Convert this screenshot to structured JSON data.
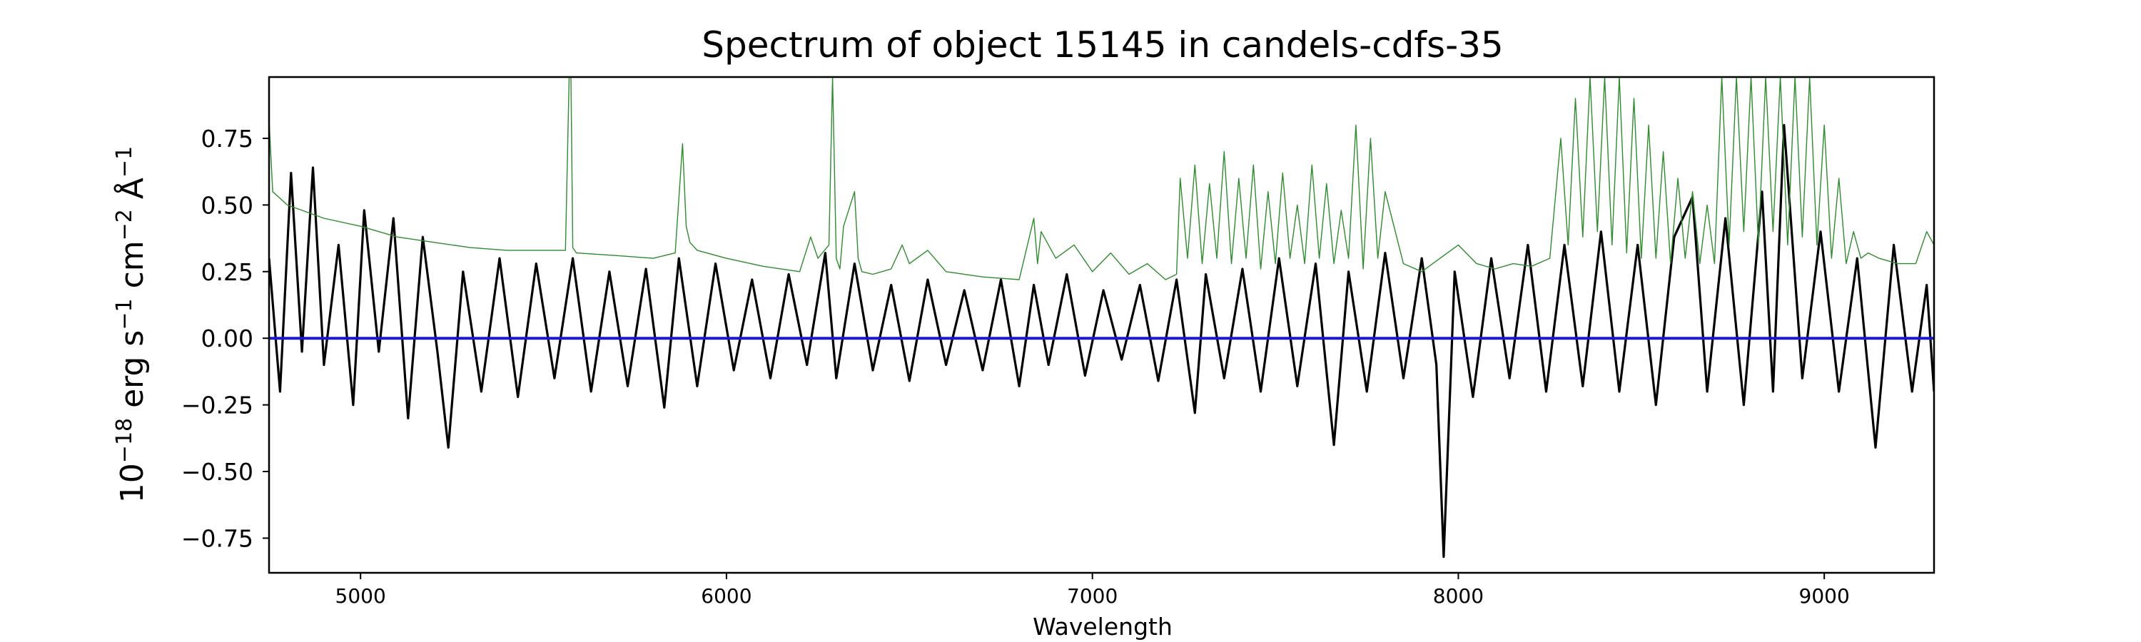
{
  "chart_data": {
    "type": "line",
    "title": "Spectrum of object 15145 in candels-cdfs-35",
    "xlabel": "Wavelength",
    "ylabel_parts": {
      "base": "10",
      "exp": "−18",
      "unit1": " erg s",
      "exp1": "−1",
      "unit2": " cm",
      "exp2": "−2",
      "unit3": " Å",
      "exp3": "−1"
    },
    "xlim": [
      4750,
      9300
    ],
    "ylim": [
      -0.88,
      0.98
    ],
    "xticks": [
      5000,
      6000,
      7000,
      8000,
      9000
    ],
    "xtick_labels": [
      "5000",
      "6000",
      "7000",
      "8000",
      "9000"
    ],
    "yticks": [
      0.75,
      0.5,
      0.25,
      0.0,
      -0.25,
      -0.5,
      -0.75
    ],
    "ytick_labels": [
      "0.75",
      "0.50",
      "0.25",
      "0.00",
      "−0.25",
      "−0.50",
      "−0.75"
    ],
    "grid": false,
    "colors": {
      "flux": "#000000",
      "error": "#2e8b2e",
      "model": "#1a1acc"
    },
    "series": [
      {
        "key": "flux",
        "x": [
          4750,
          4780,
          4810,
          4840,
          4870,
          4900,
          4940,
          4980,
          5010,
          5050,
          5090,
          5130,
          5170,
          5210,
          5240,
          5280,
          5330,
          5380,
          5430,
          5480,
          5530,
          5580,
          5630,
          5680,
          5730,
          5780,
          5830,
          5870,
          5920,
          5970,
          6020,
          6070,
          6120,
          6170,
          6220,
          6270,
          6300,
          6350,
          6400,
          6450,
          6500,
          6550,
          6600,
          6650,
          6700,
          6750,
          6800,
          6840,
          6880,
          6930,
          6980,
          7030,
          7080,
          7130,
          7180,
          7230,
          7280,
          7310,
          7360,
          7410,
          7460,
          7510,
          7560,
          7610,
          7660,
          7700,
          7750,
          7800,
          7850,
          7900,
          7940,
          7960,
          7990,
          8040,
          8090,
          8140,
          8190,
          8240,
          8290,
          8340,
          8390,
          8440,
          8490,
          8540,
          8590,
          8640,
          8680,
          8730,
          8780,
          8830,
          8860,
          8890,
          8940,
          8990,
          9040,
          9090,
          9140,
          9190,
          9240,
          9280,
          9300
        ],
        "y": [
          0.3,
          -0.2,
          0.62,
          -0.05,
          0.64,
          -0.1,
          0.35,
          -0.25,
          0.48,
          -0.05,
          0.45,
          -0.3,
          0.38,
          -0.05,
          -0.41,
          0.25,
          -0.2,
          0.3,
          -0.22,
          0.28,
          -0.15,
          0.3,
          -0.2,
          0.25,
          -0.18,
          0.26,
          -0.26,
          0.3,
          -0.18,
          0.28,
          -0.12,
          0.22,
          -0.15,
          0.24,
          -0.1,
          0.32,
          -0.15,
          0.28,
          -0.12,
          0.2,
          -0.16,
          0.22,
          -0.1,
          0.18,
          -0.12,
          0.22,
          -0.18,
          0.2,
          -0.1,
          0.24,
          -0.14,
          0.18,
          -0.08,
          0.2,
          -0.16,
          0.22,
          -0.28,
          0.24,
          -0.15,
          0.26,
          -0.2,
          0.3,
          -0.18,
          0.28,
          -0.4,
          0.25,
          -0.2,
          0.32,
          -0.15,
          0.3,
          -0.1,
          -0.82,
          0.25,
          -0.22,
          0.3,
          -0.15,
          0.35,
          -0.2,
          0.35,
          -0.18,
          0.4,
          -0.2,
          0.35,
          -0.25,
          0.38,
          0.53,
          -0.2,
          0.45,
          -0.25,
          0.55,
          -0.2,
          0.8,
          -0.15,
          0.4,
          -0.2,
          0.3,
          -0.41,
          0.35,
          -0.2,
          0.2,
          -0.2
        ]
      },
      {
        "key": "error",
        "x": [
          4750,
          4760,
          4800,
          4900,
          5000,
          5100,
          5200,
          5300,
          5400,
          5500,
          5560,
          5570,
          5575,
          5580,
          5590,
          5700,
          5800,
          5860,
          5880,
          5890,
          5900,
          5920,
          6000,
          6100,
          6200,
          6230,
          6250,
          6280,
          6290,
          6300,
          6310,
          6320,
          6350,
          6360,
          6370,
          6400,
          6450,
          6480,
          6500,
          6550,
          6600,
          6700,
          6800,
          6840,
          6850,
          6860,
          6900,
          6950,
          7000,
          7050,
          7100,
          7150,
          7200,
          7230,
          7240,
          7260,
          7280,
          7300,
          7320,
          7340,
          7360,
          7380,
          7400,
          7420,
          7440,
          7460,
          7480,
          7500,
          7520,
          7540,
          7560,
          7580,
          7600,
          7620,
          7640,
          7660,
          7680,
          7700,
          7720,
          7740,
          7760,
          7780,
          7800,
          7850,
          7900,
          7950,
          8000,
          8050,
          8100,
          8150,
          8200,
          8250,
          8280,
          8300,
          8320,
          8340,
          8360,
          8380,
          8400,
          8420,
          8440,
          8460,
          8480,
          8500,
          8520,
          8540,
          8560,
          8580,
          8600,
          8620,
          8640,
          8660,
          8680,
          8700,
          8720,
          8740,
          8760,
          8780,
          8800,
          8820,
          8840,
          8860,
          8880,
          8900,
          8920,
          8940,
          8960,
          8980,
          9000,
          9020,
          9040,
          9060,
          9080,
          9100,
          9120,
          9150,
          9200,
          9250,
          9280,
          9300
        ],
        "y": [
          0.82,
          0.55,
          0.5,
          0.45,
          0.42,
          0.38,
          0.36,
          0.34,
          0.33,
          0.33,
          0.33,
          0.98,
          0.98,
          0.34,
          0.32,
          0.31,
          0.3,
          0.32,
          0.73,
          0.42,
          0.36,
          0.33,
          0.3,
          0.27,
          0.25,
          0.38,
          0.3,
          0.35,
          0.98,
          0.3,
          0.26,
          0.42,
          0.55,
          0.3,
          0.25,
          0.24,
          0.26,
          0.35,
          0.28,
          0.33,
          0.25,
          0.23,
          0.22,
          0.45,
          0.28,
          0.4,
          0.3,
          0.35,
          0.25,
          0.32,
          0.24,
          0.28,
          0.22,
          0.24,
          0.6,
          0.3,
          0.65,
          0.28,
          0.58,
          0.3,
          0.7,
          0.28,
          0.6,
          0.3,
          0.65,
          0.26,
          0.55,
          0.28,
          0.62,
          0.3,
          0.5,
          0.28,
          0.65,
          0.3,
          0.58,
          0.28,
          0.48,
          0.3,
          0.8,
          0.26,
          0.75,
          0.3,
          0.55,
          0.28,
          0.25,
          0.3,
          0.35,
          0.28,
          0.26,
          0.28,
          0.27,
          0.3,
          0.75,
          0.35,
          0.9,
          0.38,
          0.98,
          0.4,
          0.98,
          0.35,
          0.98,
          0.32,
          0.9,
          0.3,
          0.8,
          0.3,
          0.7,
          0.28,
          0.6,
          0.3,
          0.55,
          0.28,
          0.5,
          0.28,
          0.98,
          0.35,
          0.98,
          0.4,
          0.98,
          0.35,
          0.98,
          0.4,
          0.98,
          0.35,
          0.98,
          0.38,
          0.98,
          0.35,
          0.8,
          0.3,
          0.6,
          0.28,
          0.4,
          0.3,
          0.32,
          0.3,
          0.28,
          0.28,
          0.4,
          0.35
        ]
      },
      {
        "key": "model",
        "x": [
          4750,
          9300
        ],
        "y": [
          0.0,
          0.0
        ]
      }
    ]
  }
}
